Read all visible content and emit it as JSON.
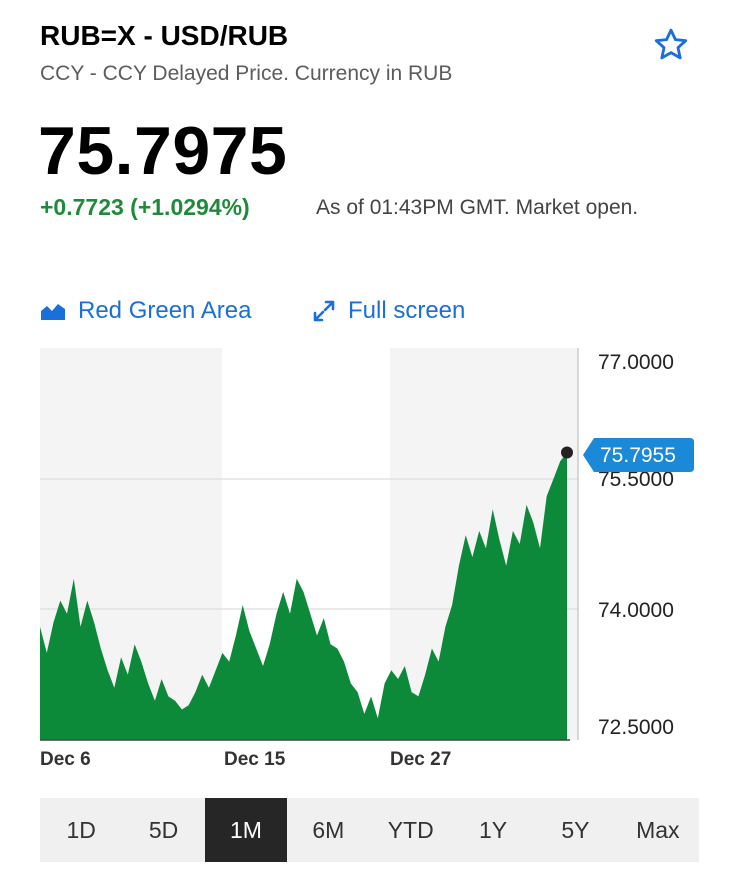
{
  "header": {
    "title": "RUB=X - USD/RUB",
    "subtitle": "CCY - CCY Delayed Price. Currency in RUB"
  },
  "quote": {
    "price": "75.7975",
    "change": "+0.7723 (+1.0294%)",
    "as_of": "As of 01:43PM GMT. Market open."
  },
  "toolbar": {
    "chart_type_label": "Red Green Area",
    "fullscreen_label": "Full screen"
  },
  "colors": {
    "accent": "#1a6fd8",
    "positive": "#1e8a3a",
    "area_fill": "#0c8a3a"
  },
  "icons": {
    "watchlist": "star-outline-icon",
    "chart_type": "area-chart-icon",
    "fullscreen": "expand-arrows-icon"
  },
  "chart_data": {
    "type": "area",
    "ylim": [
      72.5,
      77.0
    ],
    "y_ticks": [
      "77.0000",
      "75.5000",
      "74.0000",
      "72.5000"
    ],
    "x_ticks": [
      "Dec 6",
      "Dec 15",
      "Dec 27"
    ],
    "last_value_label": "75.7955",
    "series": [
      {
        "values": [
          73.8,
          73.5,
          73.85,
          74.1,
          73.95,
          74.35,
          73.8,
          74.1,
          73.85,
          73.55,
          73.3,
          73.1,
          73.45,
          73.25,
          73.6,
          73.4,
          73.15,
          72.95,
          73.2,
          73.0,
          72.95,
          72.85,
          72.9,
          73.05,
          73.25,
          73.1,
          73.3,
          73.5,
          73.4,
          73.7,
          74.05,
          73.75,
          73.55,
          73.35,
          73.6,
          73.95,
          74.2,
          73.95,
          74.35,
          74.2,
          73.95,
          73.7,
          73.9,
          73.6,
          73.55,
          73.4,
          73.15,
          73.05,
          72.8,
          73.0,
          72.75,
          73.15,
          73.3,
          73.2,
          73.35,
          73.05,
          73.0,
          73.25,
          73.55,
          73.4,
          73.8,
          74.05,
          74.5,
          74.85,
          74.6,
          74.9,
          74.7,
          75.15,
          74.8,
          74.5,
          74.9,
          74.75,
          75.2,
          75.0,
          74.7,
          75.3,
          75.5,
          75.7,
          75.8
        ]
      }
    ]
  },
  "ranges": [
    {
      "label": "1D",
      "active": false
    },
    {
      "label": "5D",
      "active": false
    },
    {
      "label": "1M",
      "active": true
    },
    {
      "label": "6M",
      "active": false
    },
    {
      "label": "YTD",
      "active": false
    },
    {
      "label": "1Y",
      "active": false
    },
    {
      "label": "5Y",
      "active": false
    },
    {
      "label": "Max",
      "active": false
    }
  ]
}
